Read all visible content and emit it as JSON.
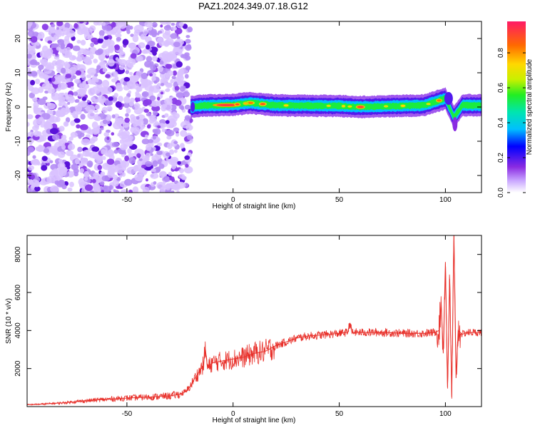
{
  "title": "PAZ1.2024.349.07.18.G12",
  "chart_data": [
    {
      "type": "heatmap",
      "title": "PAZ1.2024.349.07.18.G12",
      "xlabel": "Height of straight line (km)",
      "ylabel": "Frequency (Hz)",
      "xlim": [
        -97,
        117
      ],
      "ylim": [
        -25,
        25
      ],
      "xticks": [
        -50,
        0,
        50,
        100
      ],
      "yticks": [
        -20,
        -10,
        0,
        10,
        20
      ],
      "colorbar": {
        "label": "Normalized spectral amplitude",
        "range": [
          0,
          0.98
        ],
        "ticks": [
          0.0,
          0.2,
          0.4,
          0.6,
          0.8
        ]
      },
      "regions": [
        {
          "name": "noise",
          "x": [
            -97,
            -20
          ],
          "y": [
            -25,
            25
          ],
          "amplitude": [
            0.05,
            0.35
          ]
        },
        {
          "name": "carrier",
          "x": [
            -20,
            117
          ],
          "center_frequency": 0.5,
          "half_width": 2.0,
          "amplitude_peak": 0.95
        }
      ],
      "carrier_center": [
        {
          "x": -20,
          "y": 0.0
        },
        {
          "x": -15,
          "y": 0.4
        },
        {
          "x": 0,
          "y": 0.6
        },
        {
          "x": 8,
          "y": 1.2
        },
        {
          "x": 20,
          "y": 0.5
        },
        {
          "x": 50,
          "y": 0.3
        },
        {
          "x": 60,
          "y": 0.0
        },
        {
          "x": 90,
          "y": 0.5
        },
        {
          "x": 100,
          "y": 2.5
        },
        {
          "x": 104,
          "y": -3.0
        },
        {
          "x": 108,
          "y": 0.5
        },
        {
          "x": 117,
          "y": 0.5
        }
      ]
    },
    {
      "type": "line",
      "xlabel": "Height of straight line (km)",
      "ylabel": "SNR (10 * v/v)",
      "xlim": [
        -97,
        117
      ],
      "ylim": [
        0,
        9000
      ],
      "xticks": [
        -50,
        0,
        50,
        100
      ],
      "yticks": [
        2000,
        4000,
        6000,
        8000
      ],
      "color": "#e8302a",
      "series": [
        {
          "x": [
            -97,
            -90,
            -80,
            -70,
            -60,
            -50,
            -40,
            -30,
            -25,
            -22,
            -20,
            -18,
            -16,
            -14,
            -13,
            -12,
            -10,
            -5,
            0,
            5,
            10,
            15,
            20,
            25,
            30,
            35,
            40,
            45,
            50,
            54,
            55,
            56,
            60,
            70,
            80,
            90,
            95,
            97,
            98,
            99,
            100,
            101,
            102,
            103,
            104,
            105,
            106,
            108,
            110,
            117
          ],
          "y": [
            100,
            130,
            200,
            300,
            380,
            450,
            500,
            560,
            650,
            800,
            1100,
            1500,
            1800,
            2200,
            3000,
            2000,
            2300,
            2400,
            2500,
            2600,
            2800,
            2900,
            3200,
            3400,
            3600,
            3700,
            3750,
            3800,
            3850,
            3900,
            4400,
            3900,
            3900,
            3900,
            3850,
            3850,
            3900,
            4000,
            5500,
            2800,
            7600,
            1000,
            6700,
            500,
            9000,
            1500,
            4000,
            3800,
            3900,
            3900
          ]
        }
      ]
    }
  ]
}
